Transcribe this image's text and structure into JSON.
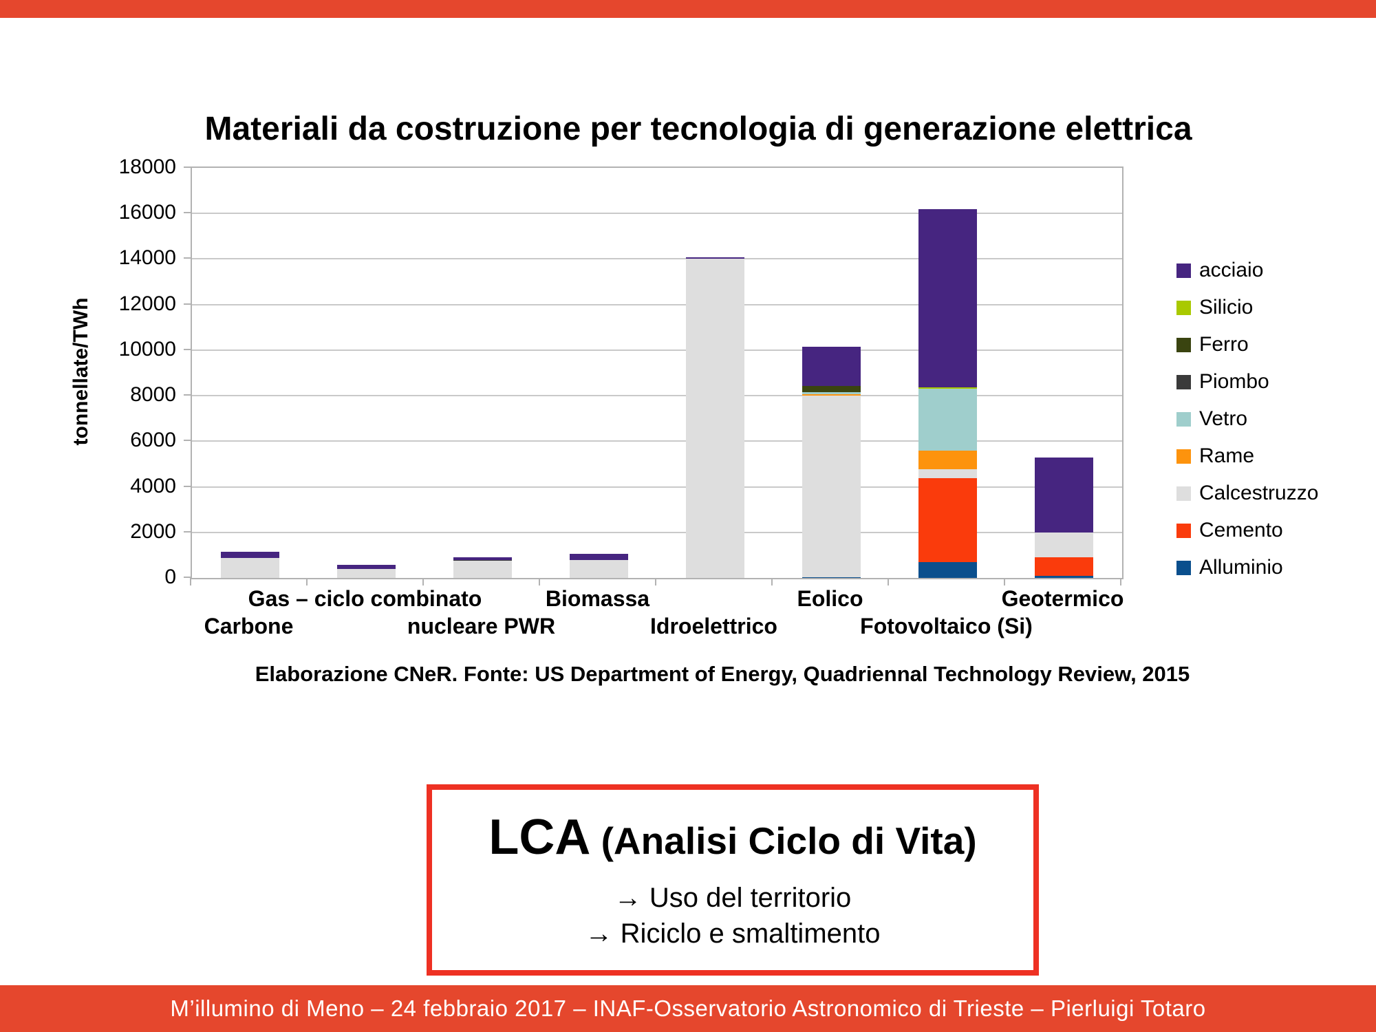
{
  "slide": {
    "title": "Materiali da costruzione per tecnologia di generazione elettrica",
    "source_line": "Elaborazione CNeR. Fonte: US Department of Energy, Quadriennal Technology Review, 2015",
    "footer_text": "M’illumino di Meno – 24 febbraio 2017 – INAF-Osservatorio Astronomico di Trieste – Pierluigi Totaro"
  },
  "colors": {
    "accent_red": "#e5472d",
    "box_border_red": "#ee3123"
  },
  "lca_box": {
    "title_big": "LCA",
    "title_small": " (Analisi Ciclo di Vita)",
    "bullets": [
      "→ Uso del territorio",
      "→ Riciclo e smaltimento"
    ]
  },
  "chart_data": {
    "type": "bar",
    "subtype": "stacked",
    "title": "Materiali da costruzione per tecnologia di generazione elettrica",
    "xlabel": "",
    "ylabel": "tonnellate/TWh",
    "ylim": [
      0,
      18000
    ],
    "ytick_step": 2000,
    "grid": true,
    "legend_position": "right",
    "categories": [
      "Carbone",
      "Gas – ciclo combinato",
      "nucleare PWR",
      "Biomassa",
      "Idroelettrico",
      "Eolico",
      "Fotovoltaico (Si)",
      "Geotermico"
    ],
    "series": [
      {
        "name": "Alluminio",
        "color": "#0a4f8d",
        "values": [
          0,
          0,
          0,
          0,
          0,
          40,
          690,
          80
        ]
      },
      {
        "name": "Cemento",
        "color": "#fa3b0c",
        "values": [
          0,
          0,
          0,
          0,
          0,
          0,
          3690,
          825
        ]
      },
      {
        "name": "Calcestruzzo",
        "color": "#dedede",
        "values": [
          870,
          400,
          760,
          790,
          14000,
          7950,
          390,
          1090
        ]
      },
      {
        "name": "Rame",
        "color": "#fd930d",
        "values": [
          0,
          0,
          0,
          0,
          0,
          60,
          810,
          0
        ]
      },
      {
        "name": "Vetro",
        "color": "#9fcecc",
        "values": [
          0,
          0,
          0,
          0,
          0,
          120,
          2720,
          0
        ]
      },
      {
        "name": "Piombo",
        "color": "#3a3a3a",
        "values": [
          0,
          0,
          30,
          0,
          0,
          0,
          0,
          0
        ]
      },
      {
        "name": "Ferro",
        "color": "#3a4410",
        "values": [
          0,
          0,
          0,
          0,
          0,
          250,
          0,
          0
        ]
      },
      {
        "name": "Silicio",
        "color": "#a9c900",
        "values": [
          0,
          0,
          0,
          0,
          0,
          0,
          60,
          0
        ]
      },
      {
        "name": "acciaio",
        "color": "#462580",
        "values": [
          290,
          160,
          130,
          270,
          70,
          1730,
          7840,
          3285
        ]
      }
    ],
    "totals": [
      1160,
      560,
      920,
      1060,
      14070,
      10150,
      16200,
      5280
    ]
  }
}
